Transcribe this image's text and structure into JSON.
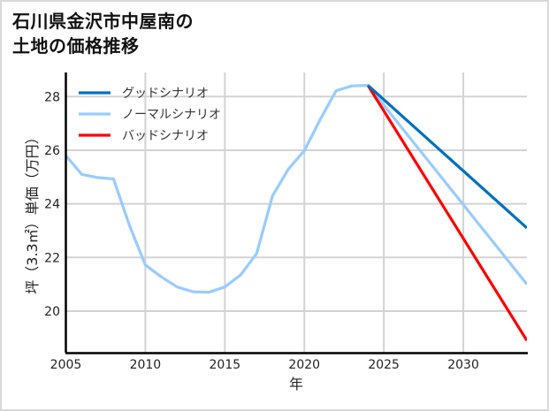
{
  "title": {
    "line1": "石川県金沢市中屋南の",
    "line2": "土地の価格推移"
  },
  "chart_data": {
    "type": "line",
    "title": "石川県金沢市中屋南の土地の価格推移",
    "xlabel": "年",
    "ylabel": "坪（3.3㎡）単価（万円）",
    "xlim": [
      2005,
      2034
    ],
    "ylim": [
      18.45,
      28.9
    ],
    "x_ticks": [
      2005,
      2010,
      2015,
      2020,
      2025,
      2030
    ],
    "y_ticks": [
      20,
      22,
      24,
      26,
      28
    ],
    "grid": true,
    "legend_position": "upper left",
    "series": [
      {
        "name": "グッドシナリオ",
        "color": "#0070c0",
        "x": [
          2024,
          2034
        ],
        "values": [
          28.42,
          23.1
        ]
      },
      {
        "name": "ノーマルシナリオ",
        "color": "#99ccff",
        "x": [
          2005,
          2006,
          2007,
          2008,
          2009,
          2010,
          2011,
          2012,
          2013,
          2014,
          2015,
          2016,
          2017,
          2018,
          2019,
          2020,
          2021,
          2022,
          2023,
          2024,
          2034
        ],
        "values": [
          25.8,
          25.1,
          24.98,
          24.93,
          23.2,
          21.72,
          21.28,
          20.9,
          20.72,
          20.7,
          20.9,
          21.35,
          22.15,
          24.3,
          25.3,
          25.98,
          27.15,
          28.22,
          28.4,
          28.42,
          21.0
        ]
      },
      {
        "name": "バッドシナリオ",
        "color": "#ff0000",
        "x": [
          2024,
          2034
        ],
        "values": [
          28.42,
          18.9
        ]
      }
    ]
  }
}
